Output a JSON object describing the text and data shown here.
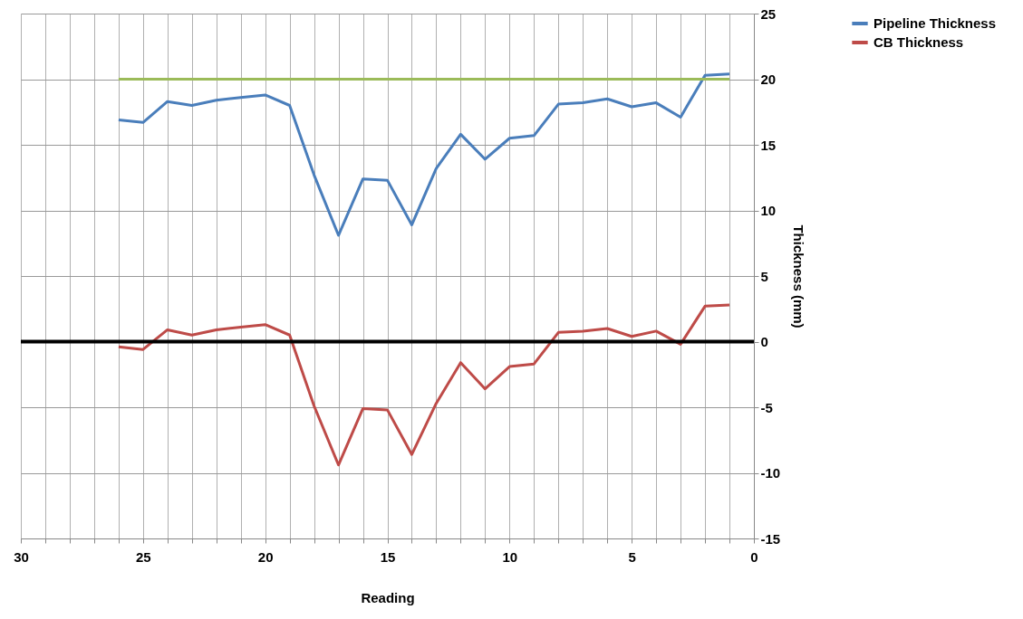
{
  "chart_data": {
    "type": "line",
    "xlabel": "Reading",
    "ylabel": "Thickness (mm)",
    "x": [
      26,
      25,
      24,
      23,
      22,
      21,
      20,
      19,
      18,
      17,
      16,
      15,
      14,
      13,
      12,
      11,
      10,
      9,
      8,
      7,
      6,
      5,
      4,
      3,
      2,
      1
    ],
    "series": [
      {
        "name": "Pipeline Thickness",
        "color": "#4a7ebb",
        "values": [
          16.9,
          16.7,
          18.3,
          18.0,
          18.4,
          18.6,
          18.8,
          18.0,
          12.7,
          8.1,
          12.4,
          12.3,
          8.9,
          13.2,
          15.8,
          13.9,
          15.5,
          15.7,
          18.1,
          18.2,
          18.5,
          17.9,
          18.2,
          17.1,
          20.3,
          20.4
        ]
      },
      {
        "name": "CB Thickness",
        "color": "#be4b48",
        "values": [
          -0.4,
          -0.6,
          0.9,
          0.5,
          0.9,
          1.1,
          1.3,
          0.5,
          -4.9,
          -9.4,
          -5.1,
          -5.2,
          -8.6,
          -4.7,
          -1.6,
          -3.6,
          -1.9,
          -1.7,
          0.7,
          0.8,
          1.0,
          0.4,
          0.8,
          -0.2,
          2.7,
          2.8
        ]
      },
      {
        "color": "#9bbb59",
        "values": [
          20,
          20,
          20,
          20,
          20,
          20,
          20,
          20,
          20,
          20,
          20,
          20,
          20,
          20,
          20,
          20,
          20,
          20,
          20,
          20,
          20,
          20,
          20,
          20,
          20,
          20
        ]
      }
    ],
    "xlim": [
      30,
      0
    ],
    "xticks": [
      {
        "value": 30,
        "label": "30"
      },
      {
        "value": 29,
        "label": null
      },
      {
        "value": 28,
        "label": null
      },
      {
        "value": 27,
        "label": null
      },
      {
        "value": 26,
        "label": null
      },
      {
        "value": 25,
        "label": "25"
      },
      {
        "value": 24,
        "label": null
      },
      {
        "value": 23,
        "label": null
      },
      {
        "value": 22,
        "label": null
      },
      {
        "value": 21,
        "label": null
      },
      {
        "value": 20,
        "label": "20"
      },
      {
        "value": 19,
        "label": null
      },
      {
        "value": 18,
        "label": null
      },
      {
        "value": 17,
        "label": null
      },
      {
        "value": 16,
        "label": null
      },
      {
        "value": 15,
        "label": "15"
      },
      {
        "value": 14,
        "label": null
      },
      {
        "value": 13,
        "label": null
      },
      {
        "value": 12,
        "label": null
      },
      {
        "value": 11,
        "label": null
      },
      {
        "value": 10,
        "label": "10"
      },
      {
        "value": 9,
        "label": null
      },
      {
        "value": 8,
        "label": null
      },
      {
        "value": 7,
        "label": null
      },
      {
        "value": 6,
        "label": null
      },
      {
        "value": 5,
        "label": "5"
      },
      {
        "value": 4,
        "label": null
      },
      {
        "value": 3,
        "label": null
      },
      {
        "value": 2,
        "label": null
      },
      {
        "value": 1,
        "label": null
      },
      {
        "value": 0,
        "label": "0"
      }
    ],
    "ylim": [
      -15,
      25
    ],
    "yticks": [
      -15,
      -10,
      -5,
      0,
      5,
      10,
      15,
      20,
      25
    ],
    "ref_lines": [
      {
        "axis": "y",
        "value": 0,
        "color": "#000000"
      }
    ],
    "grid": true,
    "legend": "right",
    "marker": "none",
    "line_style": "solid"
  }
}
